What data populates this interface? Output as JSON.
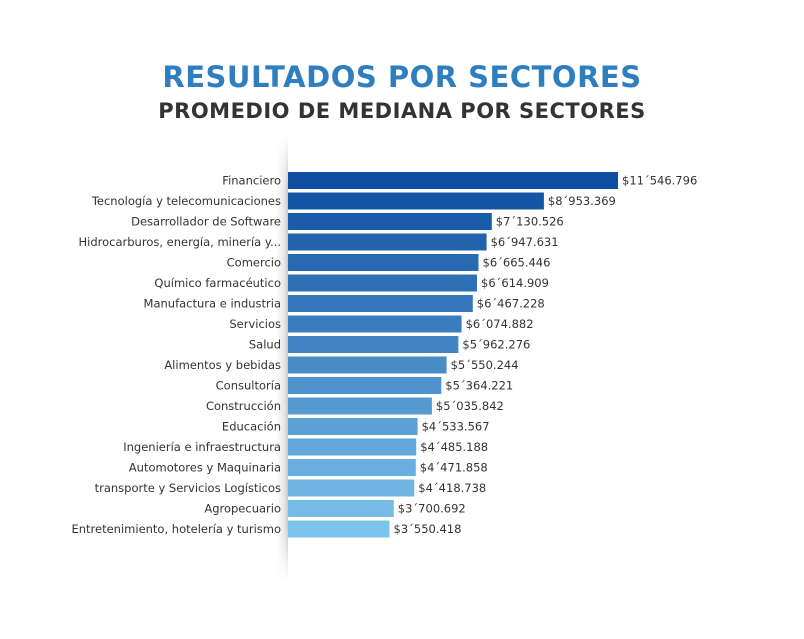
{
  "header": {
    "title": "RESULTADOS POR SECTORES",
    "subtitle": "PROMEDIO DE MEDIANA POR SECTORES"
  },
  "colors": {
    "title": "#2f7ec0",
    "bar_dark": "#0d4ea0",
    "bar_light": "#7cc3ec"
  },
  "chart_data": {
    "type": "bar",
    "orientation": "horizontal",
    "title": "RESULTADOS POR SECTORES",
    "subtitle": "PROMEDIO DE MEDIANA POR SECTORES",
    "categories": [
      "Financiero",
      "Tecnología y telecomunicaciones",
      "Desarrollador de Software",
      "Hidrocarburos, energía, minería y...",
      "Comercio",
      "Químico farmacéutico",
      "Manufactura e industria",
      "Servicios",
      "Salud",
      "Alimentos y bebidas",
      "Consultoría",
      "Construcción",
      "Educación",
      "Ingeniería e infraestructura",
      "Automotores y Maquinaria",
      "transporte y Servicios Logísticos",
      "Agropecuario",
      "Entretenimiento, hotelería y turismo"
    ],
    "values": [
      11546796,
      8953369,
      7130526,
      6947631,
      6665446,
      6614909,
      6467228,
      6074882,
      5962276,
      5550244,
      5364221,
      5035842,
      4533567,
      4485188,
      4471858,
      4418738,
      3700692,
      3550418
    ],
    "value_labels": [
      "$11´546.796",
      "$8´953.369",
      "$7´130.526",
      "$6´947.631",
      "$6´665.446",
      "$6´614.909",
      "$6´467.228",
      "$6´074.882",
      "$5´962.276",
      "$5´550.244",
      "$5´364.221",
      "$5´035.842",
      "$4´533.567",
      "$4´485.188",
      "$4´471.858",
      "$4´418.738",
      "$3´700.692",
      "$3´550.418"
    ],
    "xlim": [
      0,
      11546796
    ],
    "grid": false,
    "legend": "none"
  }
}
